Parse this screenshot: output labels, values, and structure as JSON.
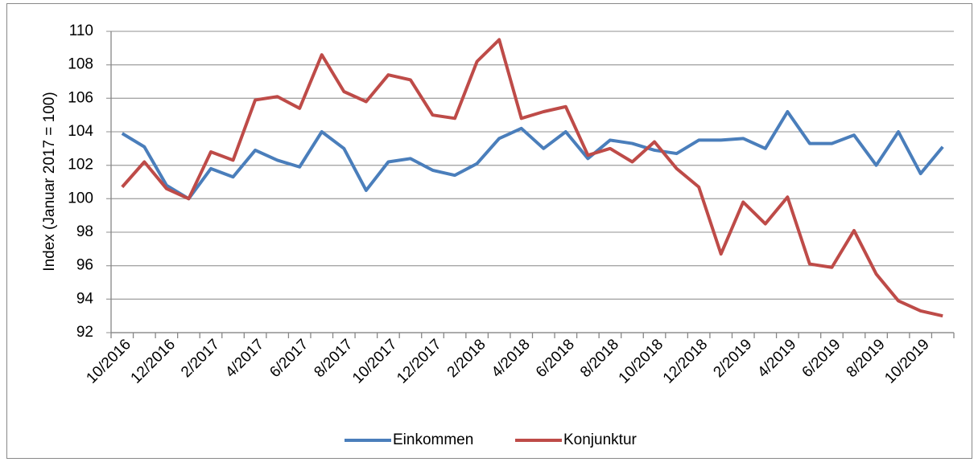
{
  "chart_data": {
    "type": "line",
    "y_label": "Index (Januar 2017 = 100)",
    "categories": [
      "10/2016",
      null,
      "12/2016",
      null,
      "2/2017",
      null,
      "4/2017",
      null,
      "6/2017",
      null,
      "8/2017",
      null,
      "10/2017",
      null,
      "12/2017",
      null,
      "2/2018",
      null,
      "4/2018",
      null,
      "6/2018",
      null,
      "8/2018",
      null,
      "10/2018",
      null,
      "12/2018",
      null,
      "2/2019",
      null,
      "4/2019",
      null,
      "6/2019",
      null,
      "8/2019",
      null,
      "10/2019",
      null
    ],
    "series": [
      {
        "name": "Einkommen",
        "color": "#4a7ebb",
        "values": [
          103.9,
          103.1,
          100.8,
          100.0,
          101.8,
          101.3,
          102.9,
          102.3,
          101.9,
          104.0,
          103.0,
          100.5,
          102.2,
          102.4,
          101.7,
          101.4,
          102.1,
          103.6,
          104.2,
          103.0,
          104.0,
          102.4,
          103.5,
          103.3,
          102.9,
          102.7,
          103.5,
          103.5,
          103.6,
          103.0,
          105.2,
          103.3,
          103.3,
          103.8,
          102.0,
          104.0,
          101.5,
          103.1
        ]
      },
      {
        "name": "Konjunktur",
        "color": "#be4b48",
        "values": [
          100.7,
          102.2,
          100.6,
          100.0,
          102.8,
          102.3,
          105.9,
          106.1,
          105.4,
          108.6,
          106.4,
          105.8,
          107.4,
          107.1,
          105.0,
          104.8,
          108.2,
          109.5,
          104.8,
          105.2,
          105.5,
          102.6,
          103.0,
          102.2,
          103.4,
          101.8,
          100.7,
          96.7,
          99.8,
          98.5,
          100.1,
          96.1,
          95.9,
          98.1,
          95.5,
          93.9,
          93.3,
          93.0
        ]
      }
    ],
    "ylim": [
      92,
      110
    ],
    "yticks": [
      92,
      94,
      96,
      98,
      100,
      102,
      104,
      106,
      108,
      110
    ],
    "grid": true,
    "legend": "bottom"
  }
}
